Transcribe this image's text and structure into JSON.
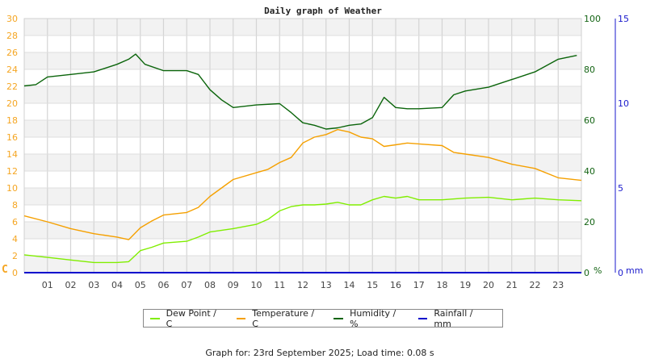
{
  "chart_data": {
    "type": "line",
    "title": "Daily graph of Weather",
    "xlabel": "",
    "x_ticks": [
      "01",
      "02",
      "03",
      "04",
      "05",
      "06",
      "07",
      "08",
      "09",
      "10",
      "11",
      "12",
      "13",
      "14",
      "15",
      "16",
      "17",
      "18",
      "19",
      "20",
      "21",
      "22",
      "23"
    ],
    "x_range": [
      0,
      24
    ],
    "axes": {
      "left": {
        "label": "C",
        "min": 0,
        "max": 30,
        "ticks": [
          0,
          2,
          4,
          6,
          8,
          10,
          12,
          14,
          16,
          18,
          20,
          22,
          24,
          26,
          28,
          30
        ],
        "color": "#f5a623"
      },
      "right1": {
        "label": "%",
        "min": 0,
        "max": 100,
        "ticks": [
          0,
          20,
          40,
          60,
          80,
          100
        ],
        "color": "#146414"
      },
      "right2": {
        "label": "mm",
        "min": 0,
        "max": 15,
        "ticks": [
          0,
          5,
          10,
          15
        ],
        "color": "#1a1acc"
      }
    },
    "grid": true,
    "legend_position": "bottom",
    "series": [
      {
        "name": "Dew Point / C",
        "color": "#80ee00",
        "axis": "left",
        "x": [
          0,
          1,
          2,
          3,
          4,
          4.5,
          5,
          5.5,
          6,
          7,
          7.5,
          8,
          9,
          10,
          10.5,
          11,
          11.5,
          12,
          12.5,
          13,
          13.5,
          14,
          14.5,
          15,
          15.5,
          16,
          16.5,
          17,
          18,
          19,
          20,
          21,
          22,
          23,
          24
        ],
        "values": [
          2.1,
          1.8,
          1.5,
          1.2,
          1.2,
          1.3,
          2.6,
          3.0,
          3.5,
          3.7,
          4.2,
          4.8,
          5.2,
          5.7,
          6.3,
          7.3,
          7.8,
          8.0,
          8.0,
          8.1,
          8.3,
          8.0,
          8.0,
          8.6,
          9.0,
          8.8,
          9.0,
          8.6,
          8.6,
          8.8,
          8.9,
          8.6,
          8.8,
          8.6,
          8.5
        ]
      },
      {
        "name": "Temperature / C",
        "color": "#f5a000",
        "axis": "left",
        "x": [
          0,
          1,
          2,
          3,
          4,
          4.5,
          5,
          5.5,
          6,
          7,
          7.5,
          8,
          9,
          10,
          10.5,
          11,
          11.5,
          12,
          12.5,
          13,
          13.5,
          14,
          14.5,
          15,
          15.5,
          16,
          16.5,
          17,
          18,
          18.5,
          19,
          20,
          21,
          22,
          23,
          24
        ],
        "values": [
          6.7,
          6.0,
          5.2,
          4.6,
          4.2,
          3.9,
          5.3,
          6.1,
          6.8,
          7.1,
          7.7,
          9.0,
          11.0,
          11.8,
          12.2,
          13.0,
          13.6,
          15.3,
          16.0,
          16.3,
          16.9,
          16.6,
          16.0,
          15.8,
          14.9,
          15.1,
          15.3,
          15.2,
          15.0,
          14.2,
          14.0,
          13.6,
          12.8,
          12.3,
          11.2,
          10.9
        ]
      },
      {
        "name": "Humidity / %",
        "color": "#0a640a",
        "axis": "right1",
        "x": [
          0,
          0.5,
          1,
          2,
          3,
          4,
          4.5,
          4.8,
          5.2,
          6,
          7,
          7.5,
          8,
          8.5,
          9,
          10,
          11,
          11.5,
          12,
          12.5,
          13,
          13.5,
          14,
          14.5,
          15,
          15.5,
          16,
          16.5,
          17,
          18,
          18.5,
          19,
          20,
          21,
          22,
          23,
          23.8
        ],
        "values": [
          73.5,
          74,
          77,
          78,
          79,
          82,
          84,
          86,
          82,
          79.5,
          79.5,
          78,
          72,
          68,
          65,
          66,
          66.5,
          63,
          59,
          58,
          56.5,
          57,
          58,
          58.5,
          61,
          69,
          65,
          64.5,
          64.5,
          65,
          70,
          71.5,
          73,
          76,
          79,
          84,
          85.5
        ]
      },
      {
        "name": "Rainfall / mm",
        "color": "#0000cc",
        "axis": "right2",
        "x": [
          0,
          24
        ],
        "values": [
          0,
          0
        ]
      }
    ]
  },
  "footer": {
    "text": "Graph for: 23rd September 2025; Load time: 0.08 s"
  }
}
